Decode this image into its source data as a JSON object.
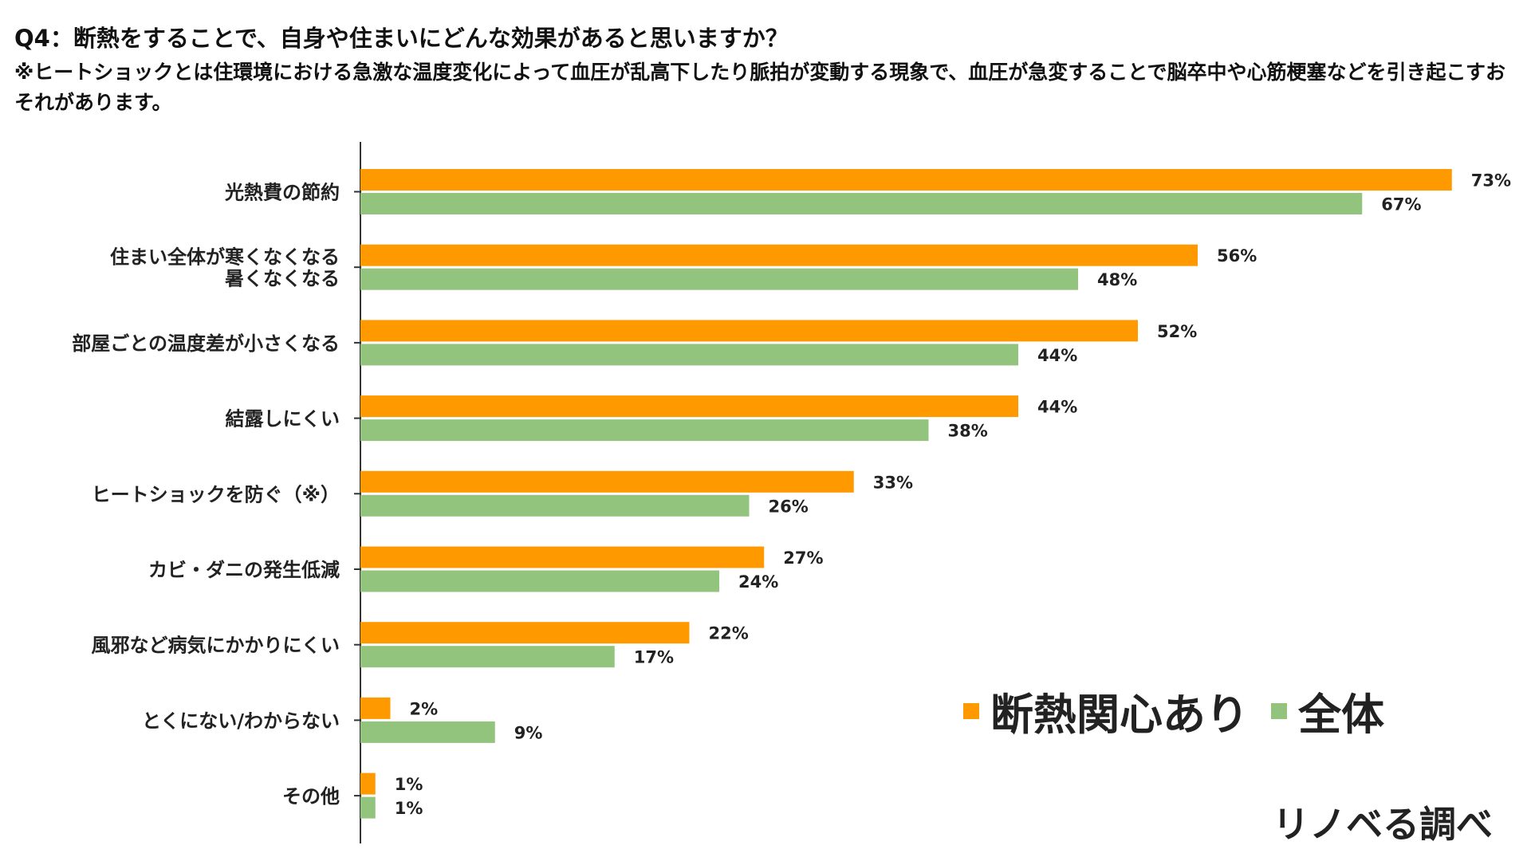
{
  "chart_data": {
    "type": "bar",
    "orientation": "horizontal",
    "title": "Q4：断熱をすることで、自身や住まいにどんな効果があると思いますか？",
    "note": "※ヒートショックとは住環境における急激な温度変化によって血圧が乱高下したり脈拍が変動する現象で、血圧が急変することで脳卒中や心筋梗塞などを引き起こすおそれがあります。",
    "categories": [
      [
        "光熱費の節約"
      ],
      [
        "住まい全体が寒くなくなる",
        "暑くなくなる"
      ],
      [
        "部屋ごとの温度差が小さくなる"
      ],
      [
        "結露しにくい"
      ],
      [
        "ヒートショックを防ぐ（※）"
      ],
      [
        "カビ・ダニの発生低減"
      ],
      [
        "風邪など病気にかかりにくい"
      ],
      [
        "とくにない/わからない"
      ],
      [
        "その他"
      ]
    ],
    "series": [
      {
        "name": "断熱関心あり",
        "color": "#FF9900",
        "values": [
          73,
          56,
          52,
          44,
          33,
          27,
          22,
          2,
          1
        ]
      },
      {
        "name": "全体",
        "color": "#93C47D",
        "values": [
          67,
          48,
          44,
          38,
          26,
          24,
          17,
          9,
          1
        ]
      }
    ],
    "value_suffix": "%",
    "xlim": [
      0,
      100
    ],
    "legend_position": "bottom-right",
    "grid": false
  },
  "source": "リノベる調べ"
}
